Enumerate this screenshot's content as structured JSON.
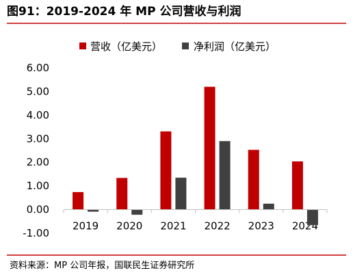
{
  "figure": {
    "title": "图91：2019-2024 年 MP 公司营收与利润",
    "source": "资料来源：MP 公司年报，国联民生证券研究所"
  },
  "chart_data": {
    "type": "bar",
    "categories": [
      "2019",
      "2020",
      "2021",
      "2022",
      "2023",
      "2024"
    ],
    "series": [
      {
        "name": "营收（亿美元）",
        "color": "#C00000",
        "values": [
          0.74,
          1.34,
          3.31,
          5.2,
          2.53,
          2.04
        ]
      },
      {
        "name": "净利润（亿美元）",
        "color": "#404040",
        "values": [
          -0.09,
          -0.22,
          1.35,
          2.9,
          0.25,
          -0.66
        ]
      }
    ],
    "ylim": [
      -1.0,
      6.0
    ],
    "yticks": [
      "6.00",
      "5.00",
      "4.00",
      "3.00",
      "2.00",
      "1.00",
      "0.00",
      "-1.00"
    ],
    "ytick_values": [
      6,
      5,
      4,
      3,
      2,
      1,
      0,
      -1
    ],
    "grid": false,
    "legend_position": "top-center"
  },
  "colors": {
    "title_rule": "#C00000",
    "axis": "#BFBFBF"
  }
}
